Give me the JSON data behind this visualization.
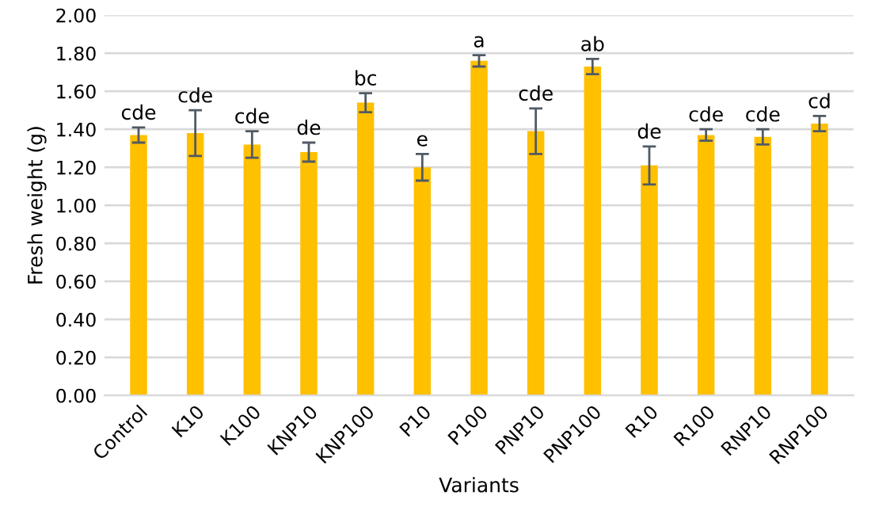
{
  "chart_data": {
    "type": "bar",
    "xlabel": "Variants",
    "ylabel": "Fresh weight (g)",
    "categories": [
      "Control",
      "K10",
      "K100",
      "KNP10",
      "KNP100",
      "P10",
      "P100",
      "PNP10",
      "PNP100",
      "R10",
      "R100",
      "RNP10",
      "RNP100"
    ],
    "values": [
      1.37,
      1.38,
      1.32,
      1.28,
      1.54,
      1.2,
      1.76,
      1.39,
      1.73,
      1.21,
      1.37,
      1.36,
      1.43
    ],
    "errors": [
      0.04,
      0.12,
      0.07,
      0.05,
      0.05,
      0.07,
      0.03,
      0.12,
      0.04,
      0.1,
      0.03,
      0.04,
      0.04
    ],
    "value_labels": [
      "cde",
      "cde",
      "cde",
      "de",
      "bc",
      "e",
      "a",
      "cde",
      "ab",
      "de",
      "cde",
      "cde",
      "cd"
    ],
    "color": "#ffc000",
    "ylim": [
      0,
      2
    ],
    "yticks": [
      {
        "value": 0,
        "label": "0.00"
      },
      {
        "value": 0.2,
        "label": "0.20"
      },
      {
        "value": 0.4,
        "label": "0.40"
      },
      {
        "value": 0.6,
        "label": "0.60"
      },
      {
        "value": 0.8,
        "label": "0.80"
      },
      {
        "value": 1.0,
        "label": "1.00"
      },
      {
        "value": 1.2,
        "label": "1.20"
      },
      {
        "value": 1.4,
        "label": "1.40"
      },
      {
        "value": 1.6,
        "label": "1.60"
      },
      {
        "value": 1.8,
        "label": "1.80"
      },
      {
        "value": 2.0,
        "label": "2.00"
      }
    ],
    "grid": "y"
  }
}
